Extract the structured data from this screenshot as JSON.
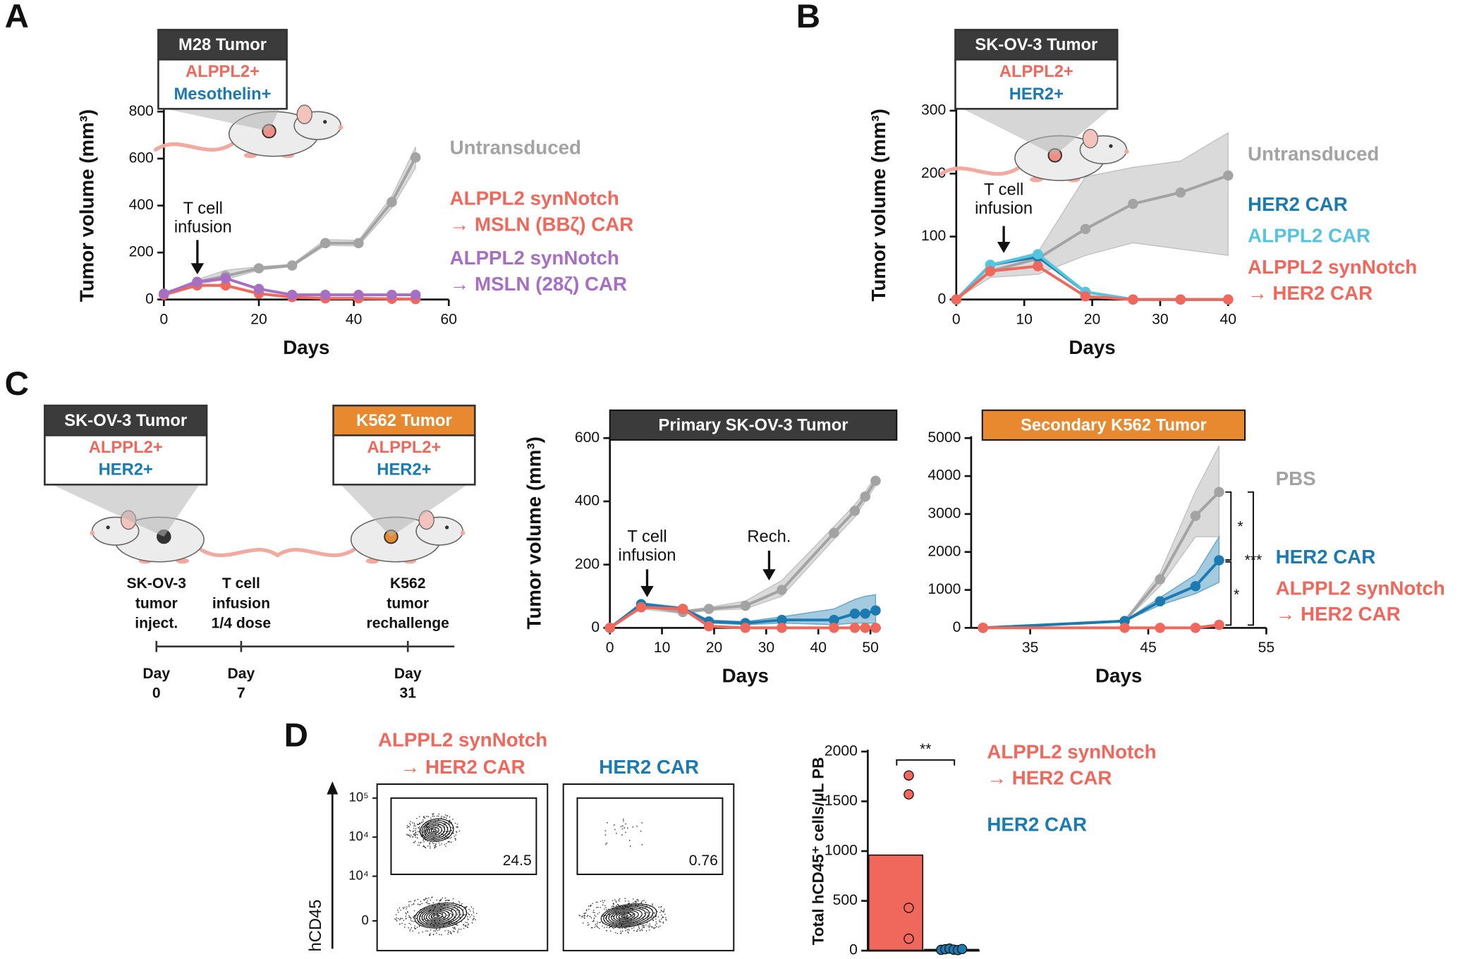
{
  "panel_labels": [
    "A",
    "B",
    "C",
    "D"
  ],
  "chart_data": [
    {
      "type": "line",
      "y_label": "Tumor volume (mm³)",
      "x_label": "Days",
      "xlim": [
        0,
        60
      ],
      "xticks": [
        0,
        20,
        40,
        60
      ],
      "ylim": [
        0,
        800
      ],
      "yticks": [
        0,
        200,
        400,
        600,
        800
      ],
      "x": [
        0,
        7,
        13,
        20,
        27,
        34,
        41,
        48,
        53
      ],
      "series": [
        {
          "name": "Untransduced",
          "color": "#a3a3a3",
          "values": [
            20,
            75,
            100,
            133,
            145,
            240,
            240,
            415,
            605
          ],
          "lower": [
            15,
            65,
            85,
            125,
            140,
            230,
            228,
            390,
            560
          ],
          "upper": [
            25,
            85,
            125,
            140,
            150,
            255,
            252,
            440,
            650
          ]
        },
        {
          "name": "ALPPL2 synNotch → MSLN (BBζ) CAR",
          "color": "#f0675c",
          "values": [
            20,
            60,
            60,
            25,
            10,
            5,
            5,
            3,
            2
          ]
        },
        {
          "name": "ALPPL2 synNotch → MSLN (28ζ) CAR",
          "color": "#a76fc3",
          "values": [
            25,
            75,
            90,
            45,
            20,
            20,
            20,
            20,
            20
          ]
        }
      ],
      "annotations": [
        [
          "T cell",
          "infusion"
        ]
      ]
    },
    {
      "type": "line",
      "y_label": "Tumor volume (mm³)",
      "x_label": "Days",
      "xlim": [
        0,
        40
      ],
      "xticks": [
        0,
        10,
        20,
        30,
        40
      ],
      "ylim": [
        0,
        300
      ],
      "yticks": [
        0,
        100,
        200,
        300
      ],
      "x": [
        0,
        5,
        12,
        19,
        26,
        33,
        40
      ],
      "series": [
        {
          "name": "Untransduced",
          "color": "#a3a3a3",
          "values": [
            0,
            45,
            65,
            112,
            152,
            170,
            197
          ],
          "lower": [
            0,
            35,
            40,
            70,
            90,
            80,
            70
          ],
          "upper": [
            0,
            55,
            75,
            195,
            210,
            220,
            265
          ]
        },
        {
          "name": "HER2 CAR",
          "color": "#1b7bb1",
          "values": [
            0,
            55,
            68,
            12,
            0,
            0,
            0
          ]
        },
        {
          "name": "ALPPL2 CAR",
          "color": "#55c4de",
          "values": [
            0,
            55,
            72,
            12,
            0,
            0,
            0
          ]
        },
        {
          "name": "ALPPL2 synNotch → HER2 CAR",
          "color": "#f0675c",
          "values": [
            0,
            45,
            53,
            5,
            0,
            0,
            0
          ]
        }
      ],
      "annotations": [
        [
          "T cell",
          "infusion"
        ]
      ]
    },
    {
      "type": "line",
      "title": "Primary SK-OV-3 Tumor",
      "title_color": "#3b3b3b",
      "y_label": "Tumor volume (mm³)",
      "x_label": "Days",
      "xlim": [
        0,
        52
      ],
      "xticks": [
        0,
        10,
        20,
        30,
        40,
        50
      ],
      "ylim": [
        0,
        600
      ],
      "yticks": [
        0,
        200,
        400,
        600
      ],
      "x": [
        0,
        6,
        14,
        19,
        26,
        33,
        43,
        47,
        49,
        51
      ],
      "series": [
        {
          "color": "#a3a3a3",
          "values": [
            0,
            70,
            50,
            60,
            70,
            120,
            300,
            370,
            415,
            465
          ],
          "lower": [
            0,
            60,
            45,
            55,
            60,
            100,
            280,
            350,
            400,
            450
          ],
          "upper": [
            0,
            80,
            55,
            65,
            85,
            150,
            320,
            390,
            430,
            480
          ]
        },
        {
          "color": "#1b7bb1",
          "values": [
            0,
            75,
            60,
            20,
            15,
            25,
            25,
            45,
            45,
            55
          ],
          "lower": [
            0,
            70,
            55,
            15,
            10,
            15,
            10,
            15,
            15,
            15
          ],
          "upper": [
            0,
            80,
            65,
            25,
            20,
            35,
            60,
            90,
            100,
            105
          ]
        },
        {
          "color": "#f0675c",
          "values": [
            0,
            65,
            60,
            5,
            0,
            0,
            0,
            0,
            0,
            0
          ]
        }
      ],
      "annotations": [
        [
          "T cell",
          "infusion"
        ],
        [
          "Rech."
        ]
      ]
    },
    {
      "type": "line",
      "title": "Secondary K562 Tumor",
      "title_color": "#e8892f",
      "x_label": "Days",
      "xlim": [
        30,
        55
      ],
      "xticks": [
        35,
        45,
        55
      ],
      "ylim": [
        0,
        5000
      ],
      "yticks": [
        0,
        1000,
        2000,
        3000,
        4000,
        5000
      ],
      "x": [
        31,
        43,
        46,
        49,
        51
      ],
      "series": [
        {
          "name": "PBS",
          "color": "#a3a3a3",
          "values": [
            0,
            180,
            1280,
            2950,
            3580
          ],
          "lower": [
            0,
            170,
            1100,
            2400,
            2400
          ],
          "upper": [
            0,
            190,
            1450,
            3600,
            4800
          ]
        },
        {
          "name": "HER2 CAR",
          "color": "#1b7bb1",
          "values": [
            0,
            180,
            700,
            1100,
            1780
          ],
          "lower": [
            0,
            170,
            600,
            900,
            1200
          ],
          "upper": [
            0,
            190,
            800,
            1400,
            2400
          ]
        },
        {
          "name": "ALPPL2 synNotch → HER2 CAR",
          "color": "#f0675c",
          "values": [
            0,
            0,
            0,
            0,
            80
          ]
        }
      ],
      "annotations": [
        "*",
        "***",
        "*"
      ]
    },
    {
      "type": "bar",
      "y_label": "Total hCD45⁺ cells/µL PB",
      "ylim": [
        0,
        2000
      ],
      "yticks": [
        0,
        500,
        1000,
        1500,
        2000
      ],
      "categories": [
        null,
        null
      ],
      "values": [
        960,
        12
      ],
      "colors": [
        "#f0675c",
        "#1b7bb1"
      ],
      "legend": [
        "ALPPL2 synNotch → HER2 CAR",
        "HER2 CAR"
      ],
      "points": [
        [
          1760,
          1570,
          430,
          120
        ],
        [
          8,
          14,
          20,
          10,
          5,
          16
        ]
      ],
      "annotations": [
        "**"
      ]
    }
  ],
  "tumor_boxes": [
    {
      "title": "M28 Tumor",
      "title_color": "#3b3b3b",
      "lines": [
        {
          "text": "ALPPL2+",
          "color": "#f0675c"
        },
        {
          "text": "Mesothelin+",
          "color": "#1b7bb1"
        }
      ]
    },
    {
      "title": "SK-OV-3 Tumor",
      "title_color": "#3b3b3b",
      "lines": [
        {
          "text": "ALPPL2+",
          "color": "#f0675c"
        },
        {
          "text": "HER2+",
          "color": "#1b7bb1"
        }
      ]
    },
    {
      "title": "SK-OV-3 Tumor",
      "title_color": "#3b3b3b",
      "lines": [
        {
          "text": "ALPPL2+",
          "color": "#f0675c"
        },
        {
          "text": "HER2+",
          "color": "#1b7bb1"
        }
      ]
    },
    {
      "title": "K562 Tumor",
      "title_color": "#e8892f",
      "lines": [
        {
          "text": "ALPPL2+",
          "color": "#f0675c"
        },
        {
          "text": "HER2+",
          "color": "#1b7bb1"
        }
      ]
    }
  ],
  "timeline": [
    {
      "label": [
        "SK-OV-3",
        "tumor",
        "inject."
      ],
      "day": [
        "Day",
        "0"
      ]
    },
    {
      "label": [
        "T cell",
        "infusion",
        "1/4 dose"
      ],
      "day": [
        "Day",
        "7"
      ]
    },
    {
      "label": [
        "K562",
        "tumor",
        "rechallenge"
      ],
      "day": [
        "Day",
        "31"
      ]
    }
  ],
  "flow": {
    "y_label": "hCD45",
    "yticks": [
      "10⁵",
      "10⁴",
      "10⁴",
      "0"
    ],
    "plots": [
      {
        "title": [
          "ALPPL2 synNotch",
          "→ HER2 CAR"
        ],
        "title_color": "#f0675c",
        "gate": "24.5"
      },
      {
        "title": [
          "HER2 CAR"
        ],
        "title_color": "#1b7bb1",
        "gate": "0.76"
      }
    ]
  }
}
